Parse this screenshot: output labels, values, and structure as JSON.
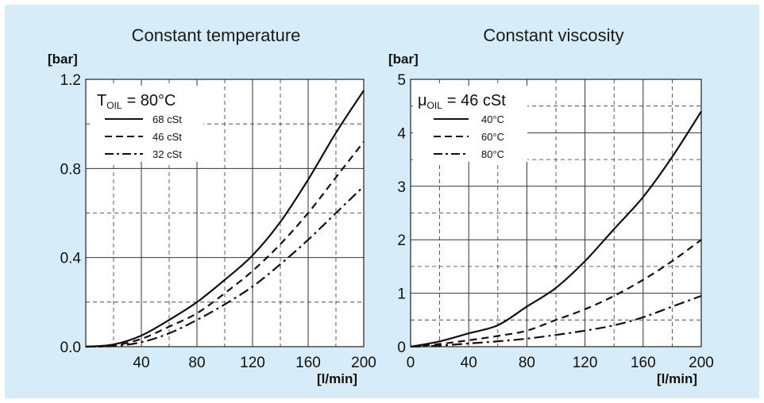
{
  "panel_color": "#d6ecf8",
  "chart_data": [
    {
      "type": "line",
      "title": "Constant temperature",
      "ylabel": "[bar]",
      "xlabel": "[l/min]",
      "xlim": [
        0,
        200
      ],
      "ylim": [
        0,
        1.2
      ],
      "x_ticks": [
        0,
        40,
        80,
        120,
        160,
        200
      ],
      "x_tick_labels": [
        "",
        "40",
        "80",
        "120",
        "160",
        "200"
      ],
      "y_ticks": [
        0,
        0.4,
        0.8,
        1.2
      ],
      "y_tick_labels": [
        "0.0",
        "0.4",
        "0.8",
        "1.2"
      ],
      "minor_grid_x": [
        20,
        60,
        100,
        140,
        180
      ],
      "minor_grid_y": [
        0.2,
        0.6,
        1.0
      ],
      "grid": true,
      "legend": {
        "title_main": "T",
        "title_sub": "OIL",
        "title_rest": "= 80°C",
        "placement": "top-left"
      },
      "series": [
        {
          "name": "68 cSt",
          "style": "solid",
          "points": [
            [
              0,
              0
            ],
            [
              20,
              0.01
            ],
            [
              40,
              0.05
            ],
            [
              60,
              0.12
            ],
            [
              80,
              0.2
            ],
            [
              100,
              0.3
            ],
            [
              120,
              0.41
            ],
            [
              140,
              0.56
            ],
            [
              160,
              0.75
            ],
            [
              180,
              0.96
            ],
            [
              200,
              1.15
            ]
          ]
        },
        {
          "name": "46 cSt",
          "style": "dashed",
          "points": [
            [
              0,
              0
            ],
            [
              20,
              0.005
            ],
            [
              40,
              0.035
            ],
            [
              60,
              0.09
            ],
            [
              80,
              0.15
            ],
            [
              100,
              0.24
            ],
            [
              120,
              0.34
            ],
            [
              140,
              0.46
            ],
            [
              160,
              0.6
            ],
            [
              180,
              0.76
            ],
            [
              200,
              0.92
            ]
          ]
        },
        {
          "name": "32 cSt",
          "style": "dashdot",
          "points": [
            [
              0,
              0
            ],
            [
              20,
              0.003
            ],
            [
              40,
              0.02
            ],
            [
              60,
              0.06
            ],
            [
              80,
              0.12
            ],
            [
              100,
              0.19
            ],
            [
              120,
              0.27
            ],
            [
              140,
              0.37
            ],
            [
              160,
              0.48
            ],
            [
              180,
              0.6
            ],
            [
              200,
              0.72
            ]
          ]
        }
      ]
    },
    {
      "type": "line",
      "title": "Constant viscosity",
      "ylabel": "[bar]",
      "xlabel": "[l/min]",
      "xlim": [
        0,
        200
      ],
      "ylim": [
        0,
        5
      ],
      "x_ticks": [
        0,
        40,
        80,
        120,
        160,
        200
      ],
      "x_tick_labels": [
        "0",
        "40",
        "80",
        "120",
        "160",
        "200"
      ],
      "y_ticks": [
        0,
        1,
        2,
        3,
        4,
        5
      ],
      "y_tick_labels": [
        "0",
        "1",
        "2",
        "3",
        "4",
        "5"
      ],
      "minor_grid_x": [
        20,
        60,
        100,
        140,
        180
      ],
      "minor_grid_y": [
        0.5,
        1.5,
        2.5,
        3.5,
        4.5
      ],
      "grid": true,
      "legend": {
        "title_main": "μ",
        "title_sub": "OIL",
        "title_rest": "= 46 cSt",
        "placement": "top-left"
      },
      "series": [
        {
          "name": "40°C",
          "style": "solid",
          "points": [
            [
              0,
              0
            ],
            [
              20,
              0.1
            ],
            [
              40,
              0.25
            ],
            [
              60,
              0.4
            ],
            [
              80,
              0.75
            ],
            [
              100,
              1.1
            ],
            [
              120,
              1.6
            ],
            [
              140,
              2.2
            ],
            [
              160,
              2.8
            ],
            [
              180,
              3.55
            ],
            [
              200,
              4.4
            ]
          ]
        },
        {
          "name": "60°C",
          "style": "dashed",
          "points": [
            [
              0,
              0
            ],
            [
              20,
              0.05
            ],
            [
              40,
              0.12
            ],
            [
              60,
              0.2
            ],
            [
              80,
              0.3
            ],
            [
              100,
              0.5
            ],
            [
              120,
              0.7
            ],
            [
              140,
              0.95
            ],
            [
              160,
              1.25
            ],
            [
              180,
              1.6
            ],
            [
              200,
              2.0
            ]
          ]
        },
        {
          "name": "80°C",
          "style": "dashdot",
          "points": [
            [
              0,
              0
            ],
            [
              20,
              0.02
            ],
            [
              40,
              0.06
            ],
            [
              60,
              0.1
            ],
            [
              80,
              0.15
            ],
            [
              100,
              0.22
            ],
            [
              120,
              0.3
            ],
            [
              140,
              0.4
            ],
            [
              160,
              0.55
            ],
            [
              180,
              0.75
            ],
            [
              200,
              0.95
            ]
          ]
        }
      ]
    }
  ]
}
